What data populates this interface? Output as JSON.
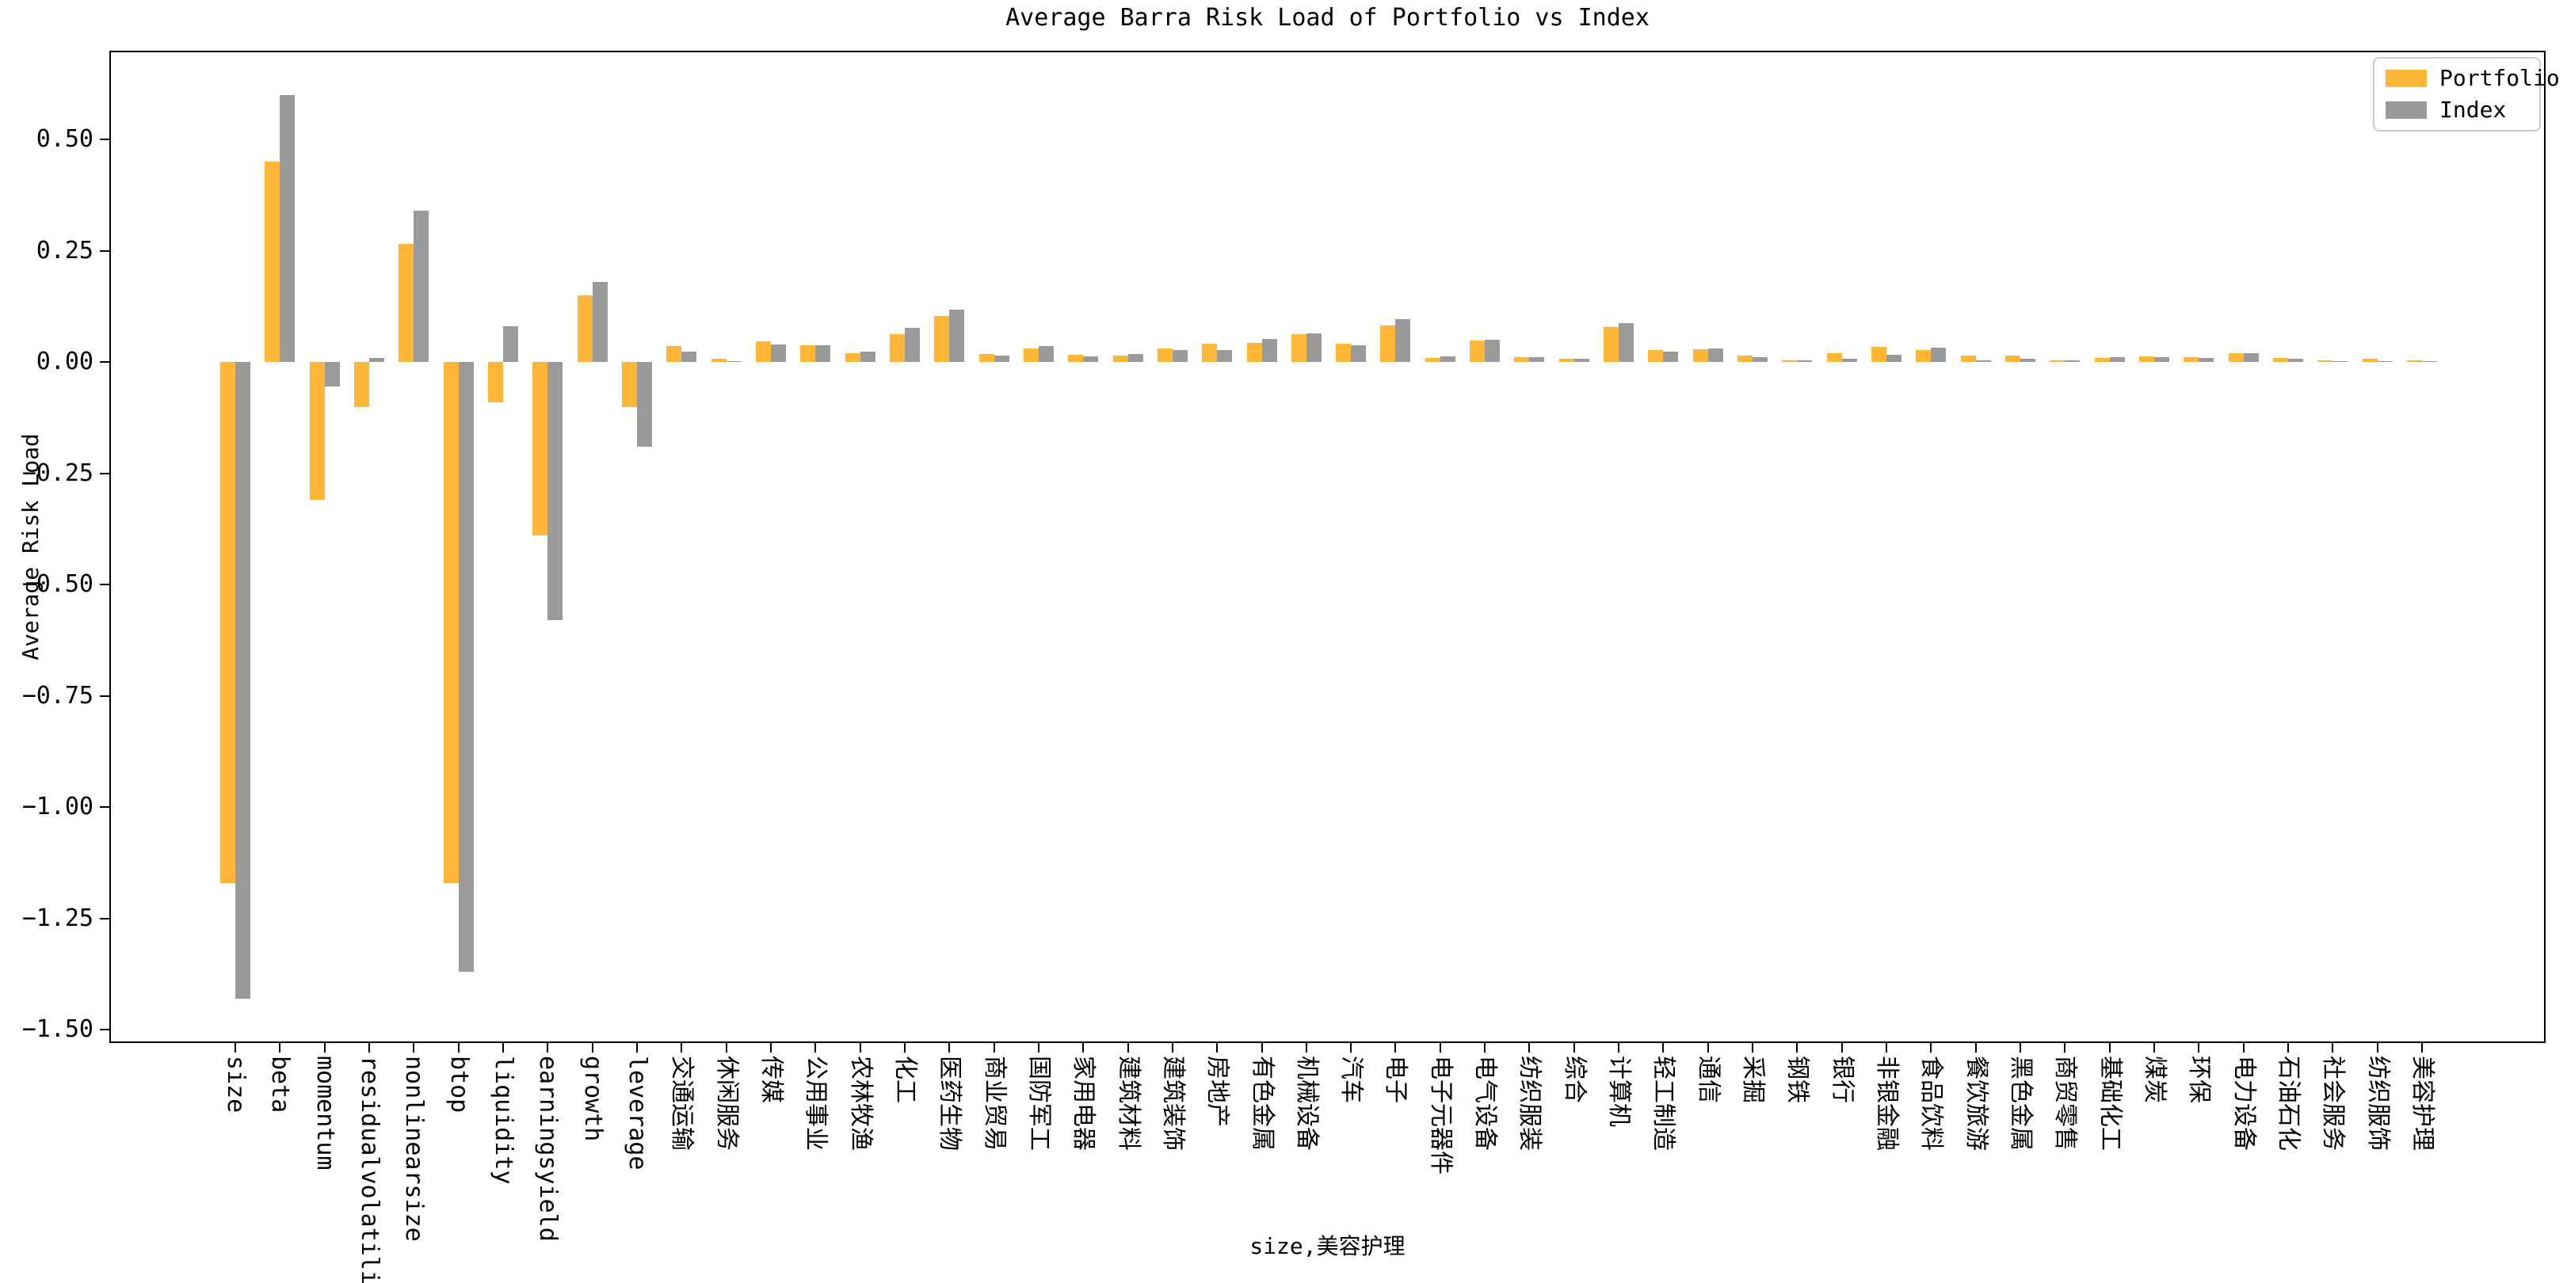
{
  "title": "Average Barra Risk Load of Portfolio vs Index",
  "axes": {
    "ylabel": "Average Risk Load",
    "xlabel": "size,美容护理",
    "yticks": [
      0.5,
      0.25,
      0.0,
      -0.25,
      -0.5,
      -0.75,
      -1.0,
      -1.25,
      -1.5
    ]
  },
  "legend": {
    "entries": [
      {
        "label": "Portfolio",
        "color": "#FFB536"
      },
      {
        "label": "Index",
        "color": "#9A9A9A"
      }
    ]
  },
  "chart_data": {
    "type": "bar",
    "title": "Average Barra Risk Load of Portfolio vs Index",
    "xlabel": "size,美容护理",
    "ylabel": "Average Risk Load",
    "ylim": [
      -1.53,
      0.7
    ],
    "grid": false,
    "legend_position": "upper right",
    "categories": [
      "size",
      "beta",
      "momentum",
      "residualvolatility",
      "nonlinearsize",
      "btop",
      "liquidity",
      "earningsyield",
      "growth",
      "leverage",
      "交通运输",
      "休闲服务",
      "传媒",
      "公用事业",
      "农林牧渔",
      "化工",
      "医药生物",
      "商业贸易",
      "国防军工",
      "家用电器",
      "建筑材料",
      "建筑装饰",
      "房地产",
      "有色金属",
      "机械设备",
      "汽车",
      "电子",
      "电子元器件",
      "电气设备",
      "纺织服装",
      "综合",
      "计算机",
      "轻工制造",
      "通信",
      "采掘",
      "钢铁",
      "银行",
      "非银金融",
      "食品饮料",
      "餐饮旅游",
      "黑色金属",
      "商贸零售",
      "基础化工",
      "煤炭",
      "环保",
      "电力设备",
      "石油石化",
      "社会服务",
      "纺织服饰",
      "美容护理"
    ],
    "series": [
      {
        "name": "Portfolio",
        "color": "#FFB536",
        "values": [
          -1.17,
          0.45,
          -0.31,
          -0.1,
          0.265,
          -1.17,
          -0.09,
          -0.39,
          0.15,
          -0.1,
          0.036,
          0.007,
          0.046,
          0.038,
          0.02,
          0.063,
          0.104,
          0.018,
          0.031,
          0.017,
          0.015,
          0.031,
          0.041,
          0.044,
          0.063,
          0.042,
          0.082,
          0.009,
          0.049,
          0.012,
          0.007,
          0.078,
          0.028,
          0.029,
          0.014,
          0.005,
          0.021,
          0.034,
          0.027,
          0.015,
          0.015,
          0.005,
          0.009,
          0.013,
          0.011,
          0.02,
          0.009,
          0.004,
          0.007,
          0.005
        ]
      },
      {
        "name": "Index",
        "color": "#9A9A9A",
        "values": [
          -1.43,
          0.6,
          -0.055,
          0.01,
          0.34,
          -1.37,
          0.08,
          -0.58,
          0.18,
          -0.19,
          0.024,
          0.003,
          0.04,
          0.038,
          0.024,
          0.077,
          0.118,
          0.015,
          0.037,
          0.013,
          0.018,
          0.028,
          0.028,
          0.053,
          0.065,
          0.038,
          0.097,
          0.013,
          0.05,
          0.011,
          0.008,
          0.088,
          0.024,
          0.031,
          0.011,
          0.004,
          0.008,
          0.017,
          0.033,
          0.005,
          0.008,
          0.004,
          0.011,
          0.011,
          0.01,
          0.021,
          0.007,
          0.003,
          0.003,
          0.002
        ]
      }
    ]
  }
}
